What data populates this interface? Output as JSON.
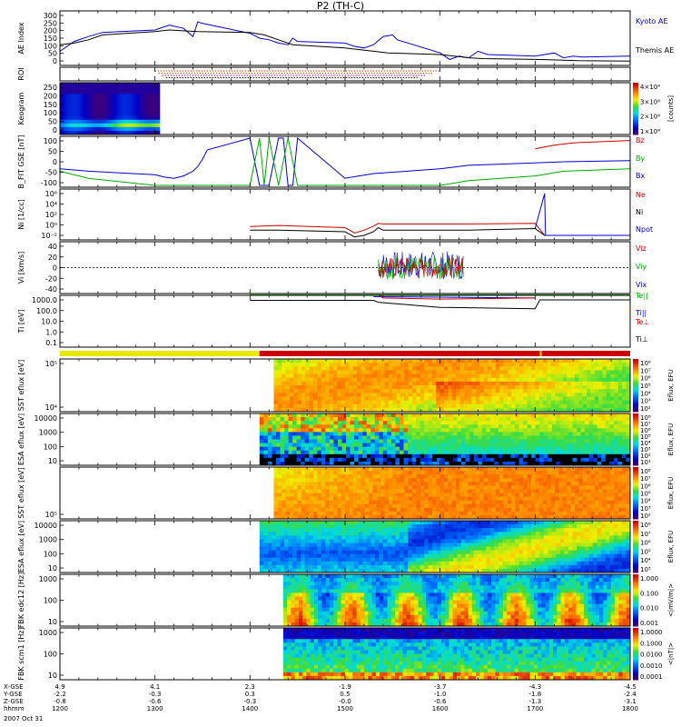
{
  "title": "P2 (TH-C)",
  "date_label": "2007 Oct 31",
  "time_axis": {
    "row_labels": [
      "X-GSE",
      "Y-GSE",
      "Z-GSE",
      "hhmm"
    ],
    "ticks": [
      {
        "x": "4.9",
        "y": "-2.2",
        "z": "-0.8",
        "t": "1200"
      },
      {
        "x": "4.1",
        "y": "-0.3",
        "z": "-0.6",
        "t": "1300"
      },
      {
        "x": "2.3",
        "y": "0.3",
        "z": "-0.3",
        "t": "1400"
      },
      {
        "x": "-1.9",
        "y": "0.5",
        "z": "-0.0",
        "t": "1500"
      },
      {
        "x": "-3.7",
        "y": "-1.0",
        "z": "-0.6",
        "t": "1600"
      },
      {
        "x": "-4.3",
        "y": "-1.8",
        "z": "-1.3",
        "t": "1700"
      },
      {
        "x": "-4.5",
        "y": "-2.4",
        "z": "-3.1",
        "t": "1800"
      }
    ]
  },
  "chart_data": [
    {
      "type": "line",
      "panel": "AE",
      "ylabel": "AE Index",
      "yticks": [
        "0",
        "50",
        "100",
        "150",
        "200",
        "250",
        "300"
      ],
      "ylim": [
        0,
        300
      ],
      "series": [
        {
          "name": "Kyoto AE",
          "color": "#0000cc",
          "x": [
            1200,
            1215,
            1230,
            1245,
            1300,
            1315,
            1330,
            1340,
            1345,
            1350,
            1400,
            1410,
            1420,
            1430,
            1440,
            1445,
            1450,
            1500,
            1510,
            1520,
            1530,
            1540,
            1550,
            1555,
            1600,
            1610,
            1620,
            1630,
            1640,
            1650,
            1700,
            1710,
            1720,
            1730,
            1740,
            1750,
            1800
          ],
          "y": [
            70,
            130,
            160,
            185,
            200,
            230,
            210,
            160,
            250,
            240,
            180,
            150,
            140,
            120,
            110,
            150,
            130,
            120,
            100,
            90,
            110,
            160,
            170,
            140,
            60,
            20,
            40,
            30,
            70,
            50,
            40,
            50,
            60,
            30,
            40,
            35,
            40
          ]
        },
        {
          "name": "Themis AE",
          "color": "#000000",
          "x": [
            1200,
            1215,
            1230,
            1245,
            1300,
            1315,
            1330,
            1345,
            1400,
            1415,
            1430,
            1445,
            1500,
            1515,
            1530,
            1545,
            1600,
            1615,
            1630,
            1645,
            1700,
            1715,
            1730,
            1745,
            1800
          ],
          "y": [
            110,
            120,
            140,
            170,
            190,
            200,
            195,
            190,
            185,
            170,
            140,
            110,
            90,
            80,
            70,
            60,
            50,
            40,
            30,
            25,
            20,
            18,
            15,
            12,
            10
          ]
        }
      ]
    },
    {
      "type": "timeline",
      "panel": "ROI",
      "ylabel": "ROI",
      "range": [
        1300,
        1600
      ],
      "colors": [
        "#cc3300",
        "#996600",
        "#990066",
        "#000000"
      ]
    },
    {
      "type": "heatmap",
      "panel": "Keogram",
      "ylabel": "Keogram",
      "yticks": [
        "0",
        "50",
        "100",
        "150",
        "200",
        "250"
      ],
      "time_range": [
        1200,
        1305
      ],
      "colorbar": {
        "label": "[counts]",
        "ticks": [
          "1×10⁴",
          "2×10⁴",
          "3×10⁴",
          "4×10⁴"
        ]
      }
    },
    {
      "type": "line",
      "panel": "B_FIT",
      "ylabel": "B_FIT GSE [nT]",
      "yticks": [
        "-100",
        "-50",
        "0",
        "50",
        "100"
      ],
      "ylim": [
        -100,
        100
      ],
      "series": [
        {
          "name": "Bx",
          "color": "#0000cc",
          "x": [
            1200,
            1230,
            1300,
            1310,
            1320,
            1330,
            1340,
            1345,
            1350,
            1355,
            1400,
            1410,
            1420,
            1430,
            1435,
            1440,
            1445,
            1450,
            1500,
            1530,
            1600,
            1630,
            1700,
            1730,
            1800
          ],
          "y": [
            -30,
            -40,
            -55,
            -65,
            -70,
            -60,
            -40,
            -20,
            10,
            50,
            100,
            -100,
            -100,
            100,
            100,
            -100,
            -100,
            100,
            -70,
            -50,
            -30,
            -15,
            -5,
            0,
            5
          ]
        },
        {
          "name": "By",
          "color": "#00aa00",
          "x": [
            1200,
            1230,
            1300,
            1330,
            1400,
            1410,
            1415,
            1420,
            1430,
            1440,
            1450,
            1500,
            1530,
            1600,
            1630,
            1700,
            1730,
            1800
          ],
          "y": [
            -40,
            -70,
            -100,
            -100,
            -100,
            100,
            -100,
            100,
            -100,
            100,
            -100,
            -100,
            -100,
            -100,
            -80,
            -60,
            -40,
            -30
          ]
        },
        {
          "name": "Bz",
          "color": "#cc0000",
          "x": [
            1700,
            1720,
            1740,
            1800
          ],
          "y": [
            55,
            70,
            80,
            90
          ]
        }
      ]
    },
    {
      "type": "line",
      "panel": "Ni",
      "ylabel": "Ni [1/cc]",
      "yscale": "log",
      "yticks": [
        "10⁻²",
        "10⁰",
        "10²",
        "10⁴",
        "10⁶"
      ],
      "series": [
        {
          "name": "Ne",
          "color": "#cc0000",
          "x": [
            1400,
            1430,
            1500,
            1510,
            1520,
            1530,
            1535,
            1540,
            1600,
            1630,
            1700,
            1710,
            1800
          ],
          "y": [
            0.5,
            0.8,
            0.3,
            0.03,
            0.1,
            0.6,
            2,
            1.5,
            1.5,
            1.5,
            2,
            0.01,
            0.01
          ]
        },
        {
          "name": "Ni",
          "color": "#000000",
          "x": [
            1400,
            1430,
            1500,
            1510,
            1520,
            1530,
            1535,
            1540,
            1600,
            1630,
            1700,
            1710,
            1800
          ],
          "y": [
            0.1,
            0.1,
            0.05,
            0.005,
            0.01,
            0.05,
            0.3,
            0.1,
            0.1,
            0.1,
            0.2,
            0.01,
            0.01
          ]
        },
        {
          "name": "Npot",
          "color": "#0000cc",
          "x": [
            1700,
            1710,
            1711,
            1800
          ],
          "y": [
            0.2,
            1000000,
            0.01,
            0.01
          ]
        }
      ]
    },
    {
      "type": "line",
      "panel": "Vi",
      "ylabel": "Vi [km/s]",
      "yticks": [
        "-40",
        "-20",
        "0",
        "20",
        "40"
      ],
      "ylim": [
        -50,
        50
      ],
      "series": [
        {
          "name": "Vix",
          "color": "#0000cc"
        },
        {
          "name": "Viy",
          "color": "#00aa00"
        },
        {
          "name": "Viz",
          "color": "#cc0000"
        }
      ],
      "burst_range": [
        1535,
        1625
      ]
    },
    {
      "type": "line",
      "panel": "Ti",
      "ylabel": "Ti [eV]",
      "yscale": "log",
      "yticks": [
        "0.1",
        "1.0",
        "10.0",
        "100.0",
        "1000.0"
      ],
      "series": [
        {
          "name": "Te||",
          "color": "#00aa00",
          "x": [
            1400,
            1500,
            1530,
            1600,
            1700,
            1800
          ],
          "y": [
            3000,
            3000,
            3000,
            3000,
            3000,
            3000
          ]
        },
        {
          "name": "Ti||",
          "color": "#0000cc",
          "x": [
            1530,
            1600,
            1700
          ],
          "y": [
            2000,
            1800,
            1500
          ]
        },
        {
          "name": "Te⊥",
          "color": "#cc0000",
          "x": [
            1535,
            1540,
            1600,
            1700
          ],
          "y": [
            3000,
            1500,
            1200,
            1500
          ]
        },
        {
          "name": "Ti⊥",
          "color": "#000000",
          "x": [
            1400,
            1530,
            1535,
            1600,
            1700,
            1705,
            1800
          ],
          "y": [
            900,
            900,
            600,
            200,
            150,
            1000,
            1000
          ]
        }
      ]
    },
    {
      "type": "heatmap",
      "panel": "SST eflux 1",
      "ylabel": "SST eflux [eV]",
      "yticks": [
        "10⁴",
        "10⁵"
      ],
      "time_range": [
        1425,
        1800
      ],
      "colorbar": {
        "label": "Eflux, EFU",
        "ticks": [
          "10²",
          "10³",
          "10⁴",
          "10⁵",
          "10⁶",
          "10⁷",
          "10⁸"
        ]
      }
    },
    {
      "type": "heatmap",
      "panel": "ESA eflux 1",
      "ylabel": "ESA eflux [eV]",
      "yticks": [
        "10",
        "100",
        "1000",
        "10000"
      ],
      "time_range": [
        1410,
        1800
      ],
      "colorbar": {
        "label": "Eflux, EFU",
        "ticks": [
          "10¹",
          "10²",
          "10³",
          "10⁴",
          "10⁵",
          "10⁶",
          "10⁷",
          "10⁸"
        ]
      }
    },
    {
      "type": "heatmap",
      "panel": "SST eflux 2",
      "ylabel": "SST eflux [eV]",
      "yticks": [
        "10⁵"
      ],
      "time_range": [
        1425,
        1800
      ],
      "colorbar": {
        "label": "Eflux, EFU",
        "ticks": [
          "10²",
          "10³",
          "10⁴",
          "10⁵",
          "10⁶",
          "10⁷",
          "10⁸"
        ]
      }
    },
    {
      "type": "heatmap",
      "panel": "ESA eflux 2",
      "ylabel": "ESA eflux [eV]",
      "yticks": [
        "10",
        "100",
        "1000",
        "10000"
      ],
      "time_range": [
        1410,
        1800
      ],
      "colorbar": {
        "label": "Eflux, EFU",
        "ticks": [
          "10³",
          "10⁴",
          "10⁵",
          "10⁶",
          "10⁷",
          "10⁸"
        ]
      }
    },
    {
      "type": "heatmap",
      "panel": "FBK edc12",
      "ylabel": "FBK edc12 [Hz]",
      "yticks": [
        "10",
        "100",
        "1000"
      ],
      "time_range": [
        1435,
        1800
      ],
      "colorbar": {
        "label": "<|mV/m|>",
        "ticks": [
          "0.001",
          "0.010",
          "0.100",
          "1.000"
        ]
      }
    },
    {
      "type": "heatmap",
      "panel": "FBK scm1",
      "ylabel": "FBK scm1 [Hz]",
      "yticks": [
        "10",
        "100",
        "1000"
      ],
      "time_range": [
        1435,
        1800
      ],
      "colorbar": {
        "label": "<|nT|>",
        "ticks": [
          "0.0001",
          "0.0010",
          "0.0100",
          "0.1000",
          "1.0000"
        ]
      }
    }
  ]
}
